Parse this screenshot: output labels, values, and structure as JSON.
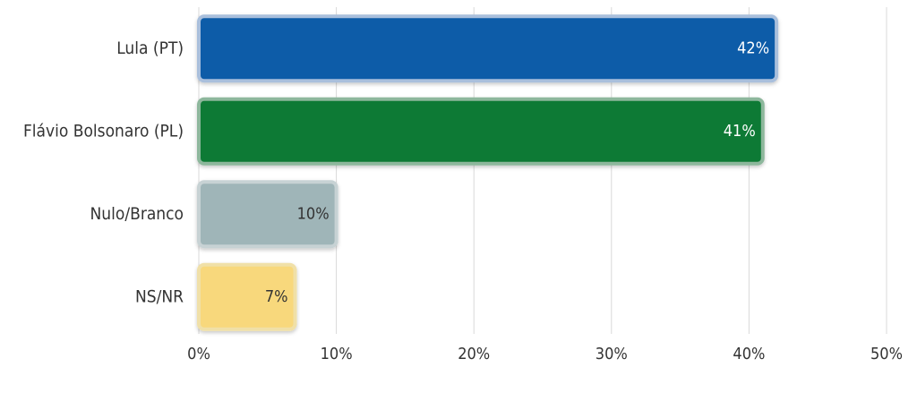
{
  "chart_data": {
    "type": "bar",
    "orientation": "horizontal",
    "title": "",
    "xlabel": "",
    "ylabel": "",
    "categories": [
      "Lula (PT)",
      "Flávio Bolsonaro (PL)",
      "Nulo/Branco",
      "NS/NR"
    ],
    "values": [
      42,
      41,
      10,
      7
    ],
    "value_labels": [
      "42%",
      "41%",
      "10%",
      "7%"
    ],
    "xlim": [
      0,
      50
    ],
    "x_ticks": [
      0,
      10,
      20,
      30,
      40,
      50
    ],
    "x_tick_labels": [
      "0%",
      "10%",
      "20%",
      "30%",
      "40%",
      "50%"
    ],
    "grid": true,
    "legend": "none",
    "colors": {
      "fill": [
        "#0a5ca8",
        "#0d7a35",
        "#9fb5b8",
        "#f8d87b"
      ],
      "border": [
        "#a9bfdc",
        "#8db79c",
        "#c7d2d4",
        "#f0e0a8"
      ],
      "label": [
        "#ffffff",
        "#ffffff",
        "#333333",
        "#333333"
      ],
      "grid": "#d9d9d9",
      "text": "#333333"
    }
  }
}
